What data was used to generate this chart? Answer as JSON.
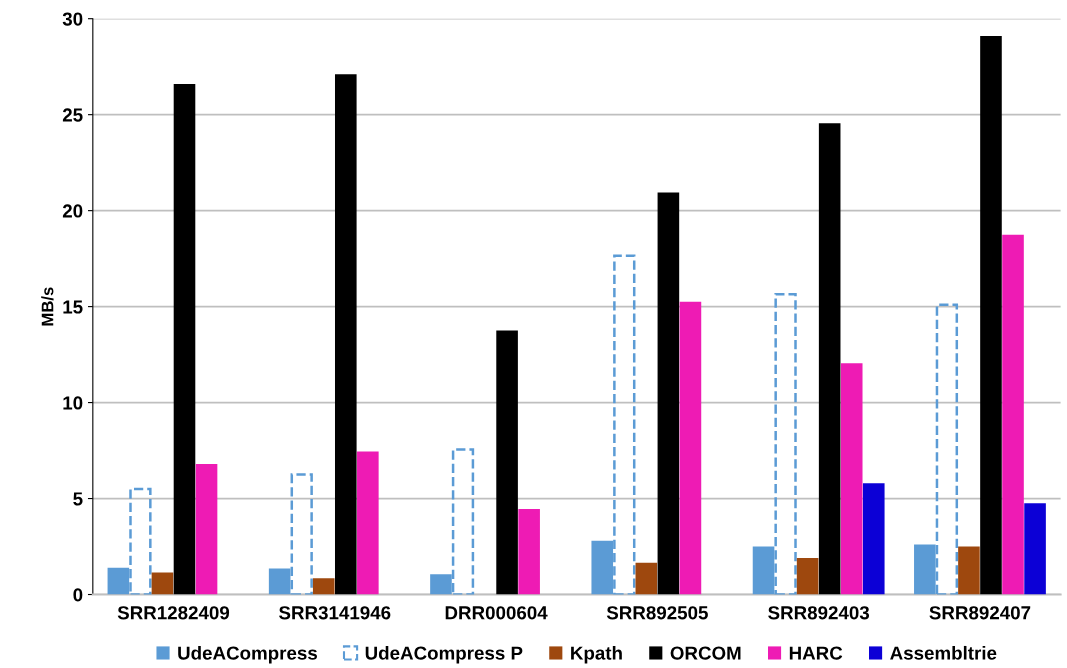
{
  "chart_data": {
    "type": "bar",
    "ylabel": "MB/s",
    "categories": [
      "SRR1282409",
      "SRR3141946",
      "DRR000604",
      "SRR892505",
      "SRR892403",
      "SRR892407"
    ],
    "series": [
      {
        "name": "UdeACompress",
        "color": "#5b9bd5",
        "values": [
          1.4,
          1.35,
          1.05,
          2.8,
          2.5,
          2.6
        ]
      },
      {
        "name": "UdeACompress P",
        "color": "#5b9bd5",
        "line_style": "dashed",
        "values": [
          5.5,
          6.25,
          7.55,
          17.65,
          15.65,
          15.1
        ]
      },
      {
        "name": "Kpath",
        "color": "#9e480e",
        "values": [
          1.15,
          0.85,
          null,
          1.65,
          1.9,
          2.5
        ]
      },
      {
        "name": "ORCOM",
        "color": "#000000",
        "values": [
          26.6,
          27.1,
          13.75,
          20.95,
          24.55,
          29.1
        ]
      },
      {
        "name": "HARC",
        "color": "#ee1bb4",
        "values": [
          6.8,
          7.45,
          4.45,
          15.25,
          12.05,
          18.75
        ]
      },
      {
        "name": "Assembltrie",
        "color": "#0c00d6",
        "values": [
          null,
          null,
          null,
          null,
          5.8,
          4.75
        ]
      }
    ],
    "ylim": [
      0,
      30
    ],
    "yticks": [
      0,
      5,
      10,
      15,
      20,
      25,
      30
    ],
    "grid": "y",
    "legend": "bottom"
  }
}
